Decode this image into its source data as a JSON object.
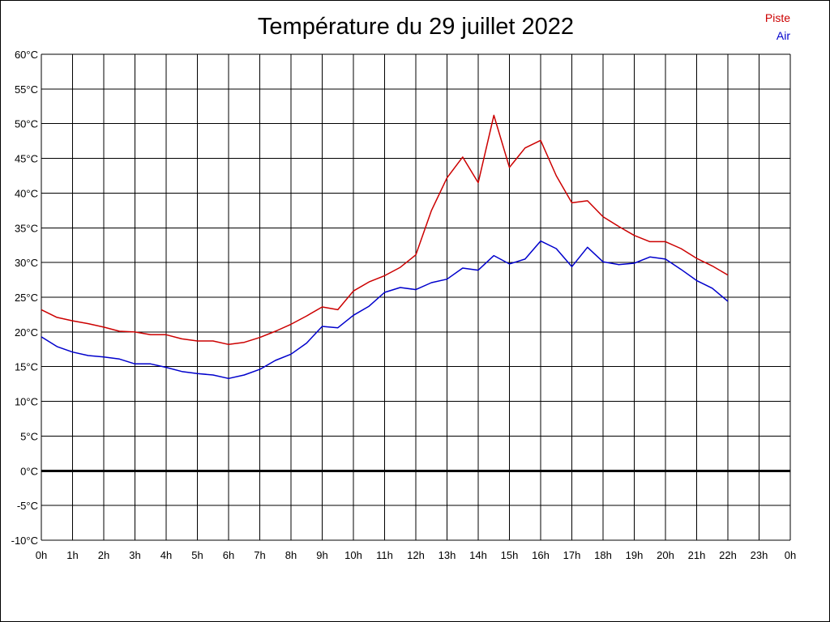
{
  "chart_data": {
    "type": "line",
    "title": "Température du 29 juillet 2022",
    "x_ticks": [
      "0h",
      "1h",
      "2h",
      "3h",
      "4h",
      "5h",
      "6h",
      "7h",
      "8h",
      "9h",
      "10h",
      "11h",
      "12h",
      "13h",
      "14h",
      "15h",
      "16h",
      "17h",
      "18h",
      "19h",
      "20h",
      "21h",
      "22h",
      "23h",
      "0h"
    ],
    "y_ticks": [
      "-10°C",
      "-5°C",
      "0°C",
      "5°C",
      "10°C",
      "15°C",
      "20°C",
      "25°C",
      "30°C",
      "35°C",
      "40°C",
      "45°C",
      "50°C",
      "55°C",
      "60°C"
    ],
    "xlim": [
      0,
      24
    ],
    "ylim": [
      -10,
      60
    ],
    "grid": true,
    "zero_line": true,
    "legend_position": "top-right",
    "series": [
      {
        "name": "Piste",
        "color": "#cc0000",
        "x": [
          0,
          0.5,
          1,
          1.5,
          2,
          2.5,
          3,
          3.5,
          4,
          4.5,
          5,
          5.5,
          6,
          6.5,
          7,
          7.5,
          8,
          8.5,
          9,
          9.5,
          10,
          10.5,
          11,
          11.5,
          12,
          12.5,
          13,
          13.5,
          14,
          14.5,
          15,
          15.5,
          16,
          16.5,
          17,
          17.5,
          18,
          18.5,
          19,
          19.5,
          20,
          20.5,
          21,
          21.5,
          22
        ],
        "y": [
          23.2,
          22.1,
          21.6,
          21.2,
          20.7,
          20.1,
          20.0,
          19.6,
          19.6,
          19.0,
          18.7,
          18.7,
          18.2,
          18.5,
          19.2,
          20.1,
          21.1,
          22.3,
          23.6,
          23.2,
          25.9,
          27.2,
          28.1,
          29.3,
          31.1,
          37.5,
          42.2,
          45.2,
          41.5,
          51.2,
          43.7,
          46.5,
          47.6,
          42.5,
          38.6,
          38.9,
          36.6,
          35.2,
          33.9,
          33.0,
          33.0,
          32.0,
          30.6,
          29.5,
          28.2
        ]
      },
      {
        "name": "Air",
        "color": "#0000cc",
        "x": [
          0,
          0.5,
          1,
          1.5,
          2,
          2.5,
          3,
          3.5,
          4,
          4.5,
          5,
          5.5,
          6,
          6.5,
          7,
          7.5,
          8,
          8.5,
          9,
          9.5,
          10,
          10.5,
          11,
          11.5,
          12,
          12.5,
          13,
          13.5,
          14,
          14.5,
          15,
          15.5,
          16,
          16.5,
          17,
          17.5,
          18,
          18.5,
          19,
          19.5,
          20,
          20.5,
          21,
          21.5,
          22
        ],
        "y": [
          19.3,
          17.9,
          17.1,
          16.6,
          16.4,
          16.1,
          15.4,
          15.4,
          14.9,
          14.3,
          14.0,
          13.8,
          13.3,
          13.8,
          14.6,
          15.9,
          16.8,
          18.4,
          20.8,
          20.6,
          22.4,
          23.7,
          25.7,
          26.4,
          26.1,
          27.1,
          27.6,
          29.2,
          28.9,
          31.0,
          29.8,
          30.5,
          33.1,
          32.0,
          29.4,
          32.2,
          30.1,
          29.7,
          29.9,
          30.8,
          30.5,
          29.0,
          27.4,
          26.3,
          24.4
        ]
      }
    ]
  }
}
